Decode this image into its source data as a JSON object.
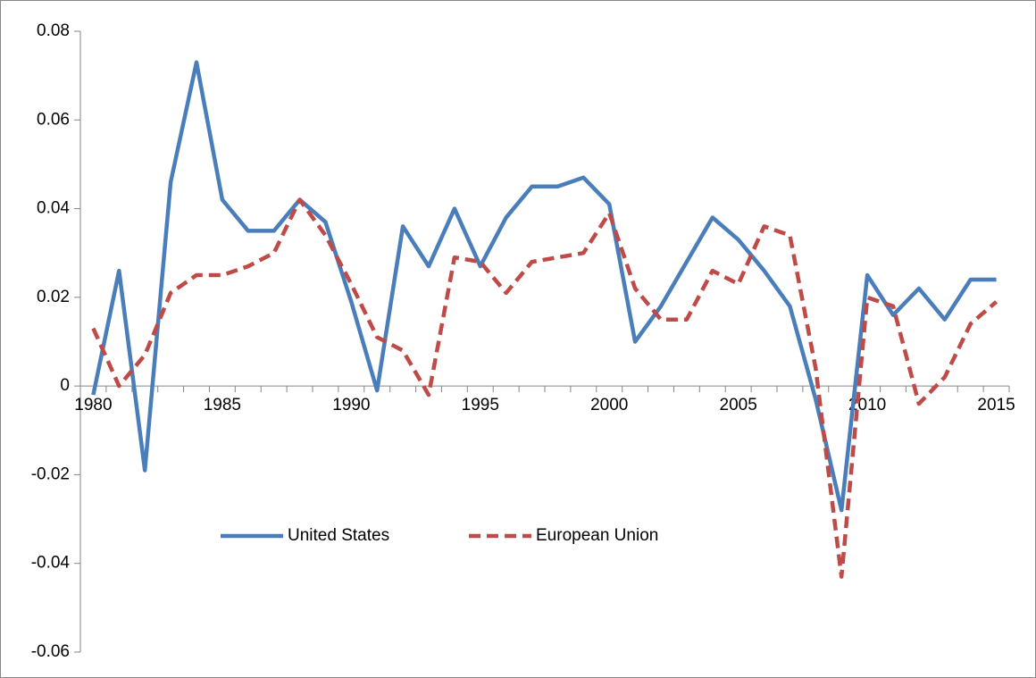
{
  "chart_data": {
    "type": "line",
    "categories": [
      1980,
      null,
      null,
      null,
      null,
      1985,
      null,
      null,
      null,
      null,
      1990,
      null,
      null,
      null,
      null,
      1995,
      null,
      null,
      null,
      null,
      2000,
      null,
      null,
      null,
      null,
      2005,
      null,
      null,
      null,
      null,
      2010,
      null,
      null,
      null,
      null,
      2015
    ],
    "series": [
      {
        "name": "United States",
        "color": "#4a7ebb",
        "dash": "solid",
        "values": [
          -0.002,
          0.026,
          -0.019,
          0.046,
          0.073,
          0.042,
          0.035,
          0.035,
          0.042,
          0.037,
          0.019,
          -0.001,
          0.036,
          0.027,
          0.04,
          0.027,
          0.038,
          0.045,
          0.045,
          0.047,
          0.041,
          0.01,
          0.018,
          0.028,
          0.038,
          0.033,
          0.026,
          0.018,
          -0.003,
          -0.028,
          0.025,
          0.016,
          0.022,
          0.015,
          0.024,
          0.024
        ]
      },
      {
        "name": "European Union",
        "color": "#be4b48",
        "dash": "dashed",
        "values": [
          0.013,
          0.0,
          0.007,
          0.021,
          0.025,
          0.025,
          0.027,
          0.03,
          0.042,
          0.034,
          0.023,
          0.011,
          0.008,
          -0.002,
          0.029,
          0.028,
          0.021,
          0.028,
          0.029,
          0.03,
          0.039,
          0.022,
          0.015,
          0.015,
          0.026,
          0.023,
          0.036,
          0.034,
          0.004,
          -0.043,
          0.02,
          0.018,
          -0.004,
          0.002,
          0.014,
          0.019
        ]
      }
    ],
    "ylim": [
      -0.06,
      0.08
    ],
    "yticks": [
      -0.06,
      -0.04,
      -0.02,
      0,
      0.02,
      0.04,
      0.06,
      0.08
    ],
    "grid": false
  }
}
